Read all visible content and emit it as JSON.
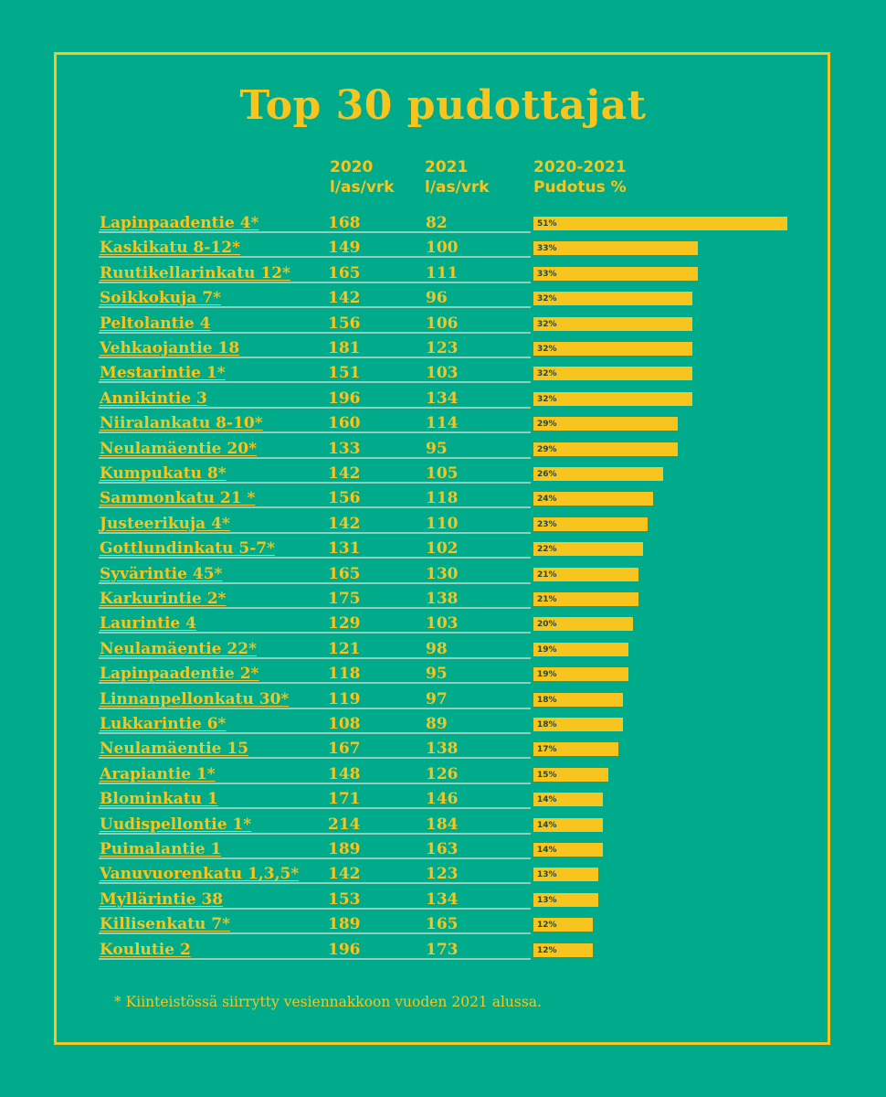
{
  "title": "Top 30 pudottajat",
  "headers": {
    "col2020_line1": "2020",
    "col2020_line2": "l/as/vrk",
    "col2021_line1": "2021",
    "col2021_line2": "l/as/vrk",
    "colDrop_line1": "2020-2021",
    "colDrop_line2": "Pudotus %"
  },
  "footnote": "* Kiinteistössä siirrytty vesiennakkoon vuoden 2021 alussa.",
  "colors": {
    "background": "#00ab8c",
    "accent": "#f7c51e"
  },
  "chart_data": {
    "type": "table",
    "bar_max_percent": 51,
    "rows": [
      {
        "name": "Lapinpaadentie 4*",
        "v2020": "168",
        "v2021": "82",
        "drop": 51,
        "drop_label": "51%"
      },
      {
        "name": "Kaskikatu 8-12*",
        "v2020": "149",
        "v2021": "100",
        "drop": 33,
        "drop_label": "33%"
      },
      {
        "name": "Ruutikellarinkatu 12*",
        "v2020": "165",
        "v2021": "111",
        "drop": 33,
        "drop_label": "33%"
      },
      {
        "name": "Soikkokuja 7*",
        "v2020": "142",
        "v2021": "96",
        "drop": 32,
        "drop_label": "32%"
      },
      {
        "name": "Peltolantie 4",
        "v2020": "156",
        "v2021": "106",
        "drop": 32,
        "drop_label": "32%"
      },
      {
        "name": "Vehkaojantie 18",
        "v2020": "181",
        "v2021": "123",
        "drop": 32,
        "drop_label": "32%"
      },
      {
        "name": "Mestarintie 1*",
        "v2020": "151",
        "v2021": "103",
        "drop": 32,
        "drop_label": "32%"
      },
      {
        "name": "Annikintie 3",
        "v2020": "196",
        "v2021": "134",
        "drop": 32,
        "drop_label": "32%"
      },
      {
        "name": "Niiralankatu 8-10*",
        "v2020": "160",
        "v2021": "114",
        "drop": 29,
        "drop_label": "29%"
      },
      {
        "name": "Neulamäentie 20*",
        "v2020": "133",
        "v2021": "95",
        "drop": 29,
        "drop_label": "29%"
      },
      {
        "name": "Kumpukatu 8*",
        "v2020": "142",
        "v2021": "105",
        "drop": 26,
        "drop_label": "26%"
      },
      {
        "name": "Sammonkatu 21 *",
        "v2020": "156",
        "v2021": "118",
        "drop": 24,
        "drop_label": "24%"
      },
      {
        "name": "Justeerikuja 4*",
        "v2020": "142",
        "v2021": "110",
        "drop": 23,
        "drop_label": "23%"
      },
      {
        "name": "Gottlundinkatu 5-7*",
        "v2020": "131",
        "v2021": "102",
        "drop": 22,
        "drop_label": "22%"
      },
      {
        "name": "Syvärintie 45*",
        "v2020": "165",
        "v2021": "130",
        "drop": 21,
        "drop_label": "21%"
      },
      {
        "name": "Karkurintie 2*",
        "v2020": "175",
        "v2021": "138",
        "drop": 21,
        "drop_label": "21%"
      },
      {
        "name": "Laurintie 4",
        "v2020": "129",
        "v2021": "103",
        "drop": 20,
        "drop_label": "20%"
      },
      {
        "name": "Neulamäentie 22*",
        "v2020": "121",
        "v2021": "98",
        "drop": 19,
        "drop_label": "19%"
      },
      {
        "name": "Lapinpaadentie 2*",
        "v2020": "118",
        "v2021": "95",
        "drop": 19,
        "drop_label": "19%"
      },
      {
        "name": "Linnanpellonkatu 30*",
        "v2020": "119",
        "v2021": "97",
        "drop": 18,
        "drop_label": "18%"
      },
      {
        "name": "Lukkarintie 6*",
        "v2020": "108",
        "v2021": "89",
        "drop": 18,
        "drop_label": "18%"
      },
      {
        "name": "Neulamäentie 15",
        "v2020": "167",
        "v2021": "138",
        "drop": 17,
        "drop_label": "17%"
      },
      {
        "name": "Arapiantie 1*",
        "v2020": "148",
        "v2021": "126",
        "drop": 15,
        "drop_label": "15%"
      },
      {
        "name": "Blominkatu 1",
        "v2020": "171",
        "v2021": "146",
        "drop": 14,
        "drop_label": "14%"
      },
      {
        "name": "Uudispellontie 1*",
        "v2020": "214",
        "v2021": "184",
        "drop": 14,
        "drop_label": "14%"
      },
      {
        "name": "Puimalantie 1",
        "v2020": "189",
        "v2021": "163",
        "drop": 14,
        "drop_label": "14%"
      },
      {
        "name": "Vanuvuorenkatu 1,3,5*",
        "v2020": "142",
        "v2021": "123",
        "drop": 13,
        "drop_label": "13%"
      },
      {
        "name": "Myllärintie 38",
        "v2020": "153",
        "v2021": "134",
        "drop": 13,
        "drop_label": "13%"
      },
      {
        "name": "Killisenkatu 7*",
        "v2020": "189",
        "v2021": "165",
        "drop": 12,
        "drop_label": "12%"
      },
      {
        "name": "Koulutie 2",
        "v2020": "196",
        "v2021": "173",
        "drop": 12,
        "drop_label": "12%"
      }
    ]
  }
}
